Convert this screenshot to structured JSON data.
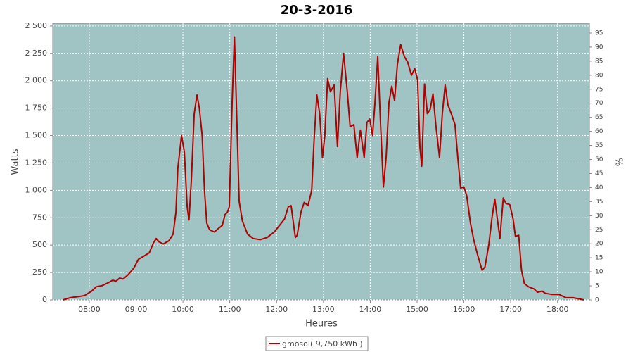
{
  "chart_data": {
    "type": "line",
    "title": "20-3-2016",
    "x_label": "Heures",
    "y_label": "Watts",
    "y2_label": "%",
    "plot_background": "#a0c4c3",
    "grid": true,
    "legend": "bottom",
    "xlim": [
      7.22,
      18.68
    ],
    "xticks": [
      {
        "value": 8,
        "label": "08:00"
      },
      {
        "value": 9,
        "label": "09:00"
      },
      {
        "value": 10,
        "label": "10:00"
      },
      {
        "value": 11,
        "label": "11:00"
      },
      {
        "value": 12,
        "label": "12:00"
      },
      {
        "value": 13,
        "label": "13:00"
      },
      {
        "value": 14,
        "label": "14:00"
      },
      {
        "value": 15,
        "label": "15:00"
      },
      {
        "value": 16,
        "label": "16:00"
      },
      {
        "value": 17,
        "label": "17:00"
      },
      {
        "value": 18,
        "label": "18:00"
      }
    ],
    "ylim": [
      0,
      2525
    ],
    "yticks": [
      0,
      250,
      500,
      750,
      {
        "value": 1000,
        "label": "1 000"
      },
      {
        "value": 1250,
        "label": "1 250"
      },
      {
        "value": 1500,
        "label": "1 500"
      },
      {
        "value": 1750,
        "label": "1 750"
      },
      {
        "value": 2000,
        "label": "2 000"
      },
      {
        "value": 2250,
        "label": "2 250"
      },
      {
        "value": 2500,
        "label": "2 500"
      }
    ],
    "y2lim": [
      0,
      98.5
    ],
    "y2ticks": [
      0,
      5,
      10,
      15,
      20,
      25,
      30,
      35,
      40,
      45,
      50,
      55,
      60,
      65,
      70,
      75,
      80,
      85,
      90,
      95
    ],
    "x": [
      7.44,
      7.59,
      7.77,
      7.9,
      8.05,
      8.15,
      8.27,
      8.42,
      8.5,
      8.57,
      8.65,
      8.72,
      8.83,
      8.95,
      9.05,
      9.17,
      9.28,
      9.37,
      9.43,
      9.49,
      9.58,
      9.7,
      9.79,
      9.85,
      9.89,
      9.97,
      10.03,
      10.09,
      10.13,
      10.18,
      10.24,
      10.3,
      10.35,
      10.41,
      10.46,
      10.51,
      10.57,
      10.67,
      10.78,
      10.84,
      10.9,
      10.95,
      10.99,
      11.05,
      11.1,
      11.14,
      11.2,
      11.27,
      11.38,
      11.5,
      11.65,
      11.8,
      11.95,
      12.1,
      12.17,
      12.25,
      12.31,
      12.4,
      12.44,
      12.52,
      12.59,
      12.67,
      12.75,
      12.8,
      12.86,
      12.92,
      12.98,
      13.03,
      13.09,
      13.15,
      13.23,
      13.3,
      13.36,
      13.43,
      13.51,
      13.57,
      13.65,
      13.72,
      13.79,
      13.87,
      13.93,
      13.99,
      14.05,
      14.1,
      14.16,
      14.22,
      14.28,
      14.34,
      14.4,
      14.46,
      14.52,
      14.58,
      14.65,
      14.73,
      14.8,
      14.88,
      14.95,
      15.01,
      15.06,
      15.1,
      15.16,
      15.22,
      15.28,
      15.34,
      15.4,
      15.48,
      15.54,
      15.6,
      15.66,
      15.73,
      15.81,
      15.87,
      15.93,
      16.0,
      16.06,
      16.14,
      16.21,
      16.3,
      16.39,
      16.45,
      16.53,
      16.6,
      16.66,
      16.72,
      16.77,
      16.84,
      16.9,
      16.98,
      17.05,
      17.1,
      17.17,
      17.23,
      17.29,
      17.38,
      17.5,
      17.57,
      17.67,
      17.74,
      17.88,
      18.03,
      18.18,
      18.33,
      18.45,
      18.56
    ],
    "series": [
      {
        "name": "gmosol( 9,750 kWh )",
        "color": "#b00000",
        "values": [
          0,
          20,
          30,
          40,
          80,
          120,
          130,
          160,
          180,
          170,
          200,
          190,
          230,
          290,
          370,
          400,
          430,
          520,
          560,
          530,
          510,
          540,
          600,
          800,
          1200,
          1500,
          1350,
          850,
          730,
          1100,
          1700,
          1870,
          1750,
          1500,
          1000,
          700,
          640,
          620,
          660,
          680,
          780,
          800,
          850,
          1800,
          2400,
          1800,
          900,
          720,
          600,
          560,
          550,
          570,
          620,
          700,
          740,
          850,
          860,
          570,
          590,
          800,
          890,
          860,
          1000,
          1450,
          1870,
          1700,
          1300,
          1500,
          2020,
          1900,
          1960,
          1400,
          1900,
          2250,
          1900,
          1580,
          1600,
          1300,
          1550,
          1300,
          1620,
          1650,
          1500,
          1800,
          2220,
          1600,
          1030,
          1300,
          1800,
          1950,
          1820,
          2150,
          2330,
          2220,
          2170,
          2050,
          2110,
          2010,
          1400,
          1220,
          1970,
          1700,
          1740,
          1880,
          1600,
          1300,
          1700,
          1960,
          1780,
          1700,
          1600,
          1300,
          1020,
          1030,
          950,
          700,
          550,
          400,
          270,
          300,
          500,
          750,
          920,
          720,
          560,
          930,
          880,
          870,
          740,
          580,
          590,
          270,
          150,
          120,
          100,
          70,
          80,
          60,
          50,
          50,
          20,
          20,
          10,
          0
        ]
      }
    ]
  }
}
